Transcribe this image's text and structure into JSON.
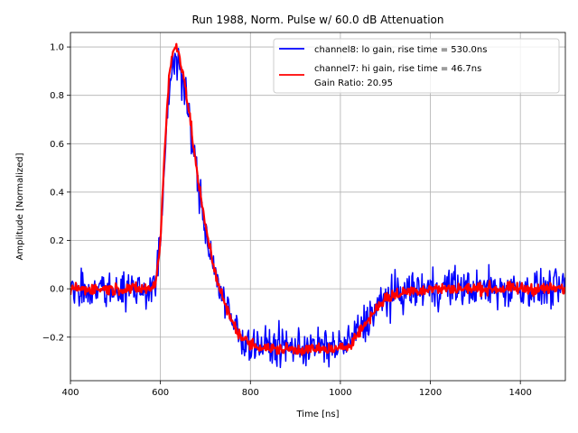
{
  "chart_data": {
    "type": "line",
    "title": "Run 1988, Norm. Pulse w/ 60.0 dB Attenuation",
    "xlabel": "Time [ns]",
    "ylabel": "Amplitude [Normalized]",
    "xlim": [
      400,
      1500
    ],
    "ylim": [
      -0.38,
      1.06
    ],
    "xticks": [
      400,
      600,
      800,
      1000,
      1200,
      1400
    ],
    "xtick_labels": [
      "400",
      "600",
      "800",
      "1000",
      "1200",
      "1400"
    ],
    "yticks": [
      -0.2,
      0.0,
      0.2,
      0.4,
      0.6,
      0.8,
      1.0
    ],
    "ytick_labels": [
      "−0.2",
      "0.0",
      "0.2",
      "0.4",
      "0.6",
      "0.8",
      "1.0"
    ],
    "grid": true,
    "legend_position": "top-right",
    "series": [
      {
        "name": "channel8: lo gain, rise time = 530.0ns",
        "color": "#0000ff",
        "noise": 0.04,
        "x": [
          400,
          550,
          580,
          590,
          600,
          610,
          620,
          630,
          635,
          640,
          650,
          660,
          670,
          680,
          690,
          700,
          720,
          740,
          760,
          780,
          800,
          850,
          900,
          950,
          1000,
          1020,
          1050,
          1080,
          1100,
          1150,
          1200,
          1250,
          1300,
          1350,
          1400,
          1450,
          1500
        ],
        "y": [
          0.0,
          0.0,
          0.0,
          0.03,
          0.18,
          0.55,
          0.85,
          0.95,
          0.96,
          0.94,
          0.85,
          0.75,
          0.62,
          0.48,
          0.36,
          0.25,
          0.08,
          -0.05,
          -0.14,
          -0.2,
          -0.23,
          -0.24,
          -0.24,
          -0.24,
          -0.24,
          -0.22,
          -0.15,
          -0.08,
          -0.04,
          -0.01,
          0.0,
          0.01,
          0.0,
          0.0,
          0.0,
          0.0,
          0.0
        ]
      },
      {
        "name": "channel7: hi gain, rise time = 46.7ns",
        "color": "#ff0000",
        "noise": 0.012,
        "x": [
          400,
          550,
          580,
          590,
          600,
          610,
          620,
          630,
          635,
          640,
          650,
          660,
          670,
          680,
          690,
          700,
          720,
          740,
          760,
          780,
          800,
          850,
          900,
          950,
          1000,
          1020,
          1050,
          1080,
          1100,
          1150,
          1200,
          1250,
          1300,
          1350,
          1400,
          1450,
          1500
        ],
        "y": [
          0.0,
          0.0,
          0.0,
          0.03,
          0.2,
          0.6,
          0.9,
          0.99,
          1.0,
          0.98,
          0.9,
          0.78,
          0.64,
          0.5,
          0.37,
          0.26,
          0.08,
          -0.05,
          -0.14,
          -0.2,
          -0.23,
          -0.25,
          -0.25,
          -0.25,
          -0.25,
          -0.23,
          -0.16,
          -0.08,
          -0.04,
          -0.01,
          0.0,
          0.0,
          0.0,
          0.0,
          0.0,
          0.0,
          0.0
        ]
      }
    ],
    "legend_extra": "Gain Ratio: 20.95"
  }
}
